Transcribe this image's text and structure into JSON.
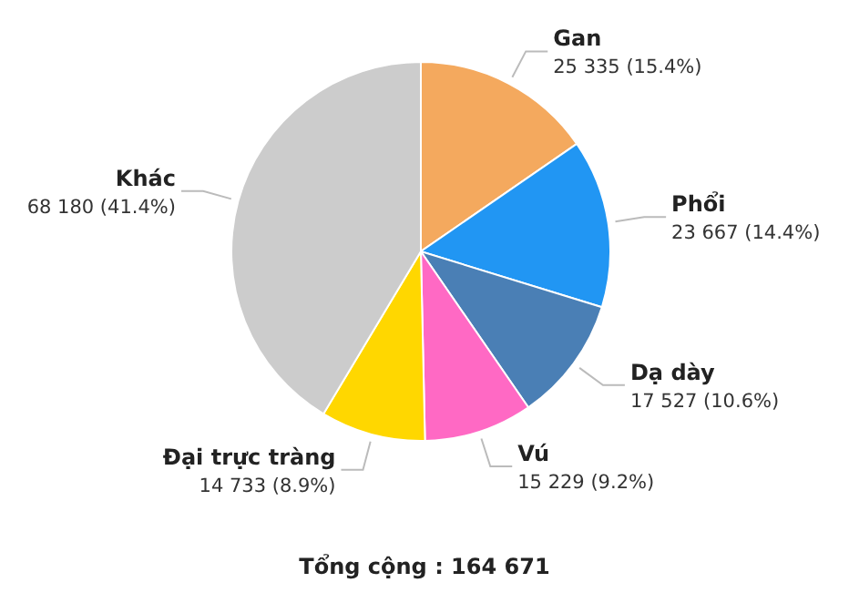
{
  "chart_data": {
    "type": "pie",
    "categories": [
      "Gan",
      "Phổi",
      "Dạ dày",
      "Vú",
      "Đại trực tràng",
      "Khác"
    ],
    "values": [
      25335,
      23667,
      17527,
      15229,
      14733,
      68180
    ],
    "colors": [
      "#f4a95e",
      "#2196f3",
      "#4a7fb5",
      "#ff69c4",
      "#ffd700",
      "#cccccc"
    ],
    "value_labels": [
      "25 335 (15.4%)",
      "23 667 (14.4%)",
      "17 527 (10.6%)",
      "15 229 (9.2%)",
      "14 733 (8.9%)",
      "68 180 (41.4%)"
    ],
    "annotations": [
      "Tổng cộng : 164 671"
    ]
  }
}
